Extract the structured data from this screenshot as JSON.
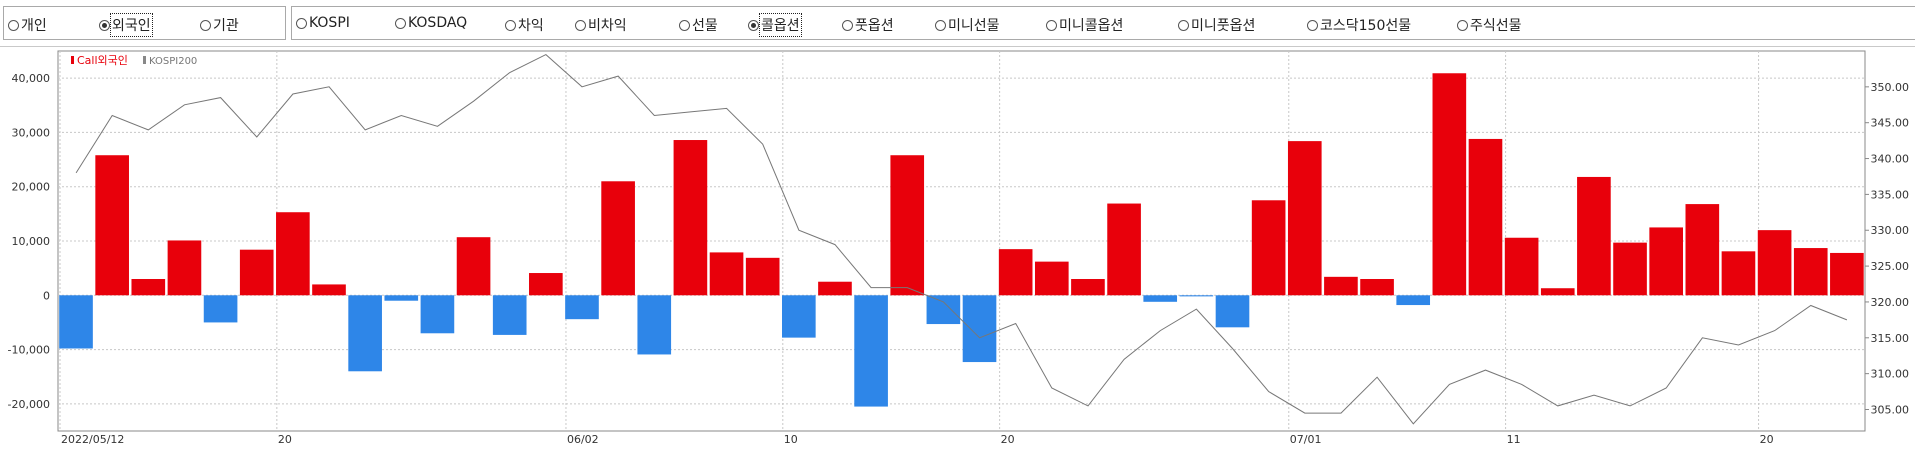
{
  "investor_group": {
    "options": [
      {
        "label": "개인",
        "selected": false
      },
      {
        "label": "외국인",
        "selected": true
      },
      {
        "label": "기관",
        "selected": false
      }
    ]
  },
  "market_group": {
    "options": [
      {
        "label": "KOSPI",
        "selected": false
      },
      {
        "label": "KOSDAQ",
        "selected": false
      },
      {
        "label": "차익",
        "selected": false
      },
      {
        "label": "비차익",
        "selected": false
      },
      {
        "label": "선물",
        "selected": false
      },
      {
        "label": "콜옵션",
        "selected": true
      },
      {
        "label": "풋옵션",
        "selected": false
      },
      {
        "label": "미니선물",
        "selected": false
      },
      {
        "label": "미니콜옵션",
        "selected": false
      },
      {
        "label": "미니풋옵션",
        "selected": false
      },
      {
        "label": "코스닥150선물",
        "selected": false
      },
      {
        "label": "주식선물",
        "selected": false
      }
    ]
  },
  "colors": {
    "positive": "#e8000b",
    "negative": "#2e86e8",
    "line": "#777777",
    "grid": "#c8c8c8"
  },
  "chart_data": {
    "type": "bar",
    "legend": [
      {
        "name": "Call외국인",
        "color": "#e8000b"
      },
      {
        "name": "KOSPI200",
        "color": "#888888"
      }
    ],
    "left_axis": {
      "min": -25000,
      "max": 45000,
      "ticks": [
        -20000,
        -10000,
        0,
        10000,
        20000,
        30000,
        40000
      ],
      "tick_labels": [
        "-20,000",
        "-10,000",
        "0",
        "10,000",
        "20,000",
        "30,000",
        "40,000"
      ]
    },
    "right_axis": {
      "min": 302,
      "max": 355,
      "ticks": [
        305,
        310,
        315,
        320,
        325,
        330,
        335,
        340,
        345,
        350
      ],
      "tick_labels": [
        "305.00",
        "310.00",
        "315.00",
        "320.00",
        "325.00",
        "330.00",
        "335.00",
        "340.00",
        "345.00",
        "350.00"
      ]
    },
    "x_labels": [
      {
        "index": 0,
        "label": "2022/05/12"
      },
      {
        "index": 6,
        "label": "20"
      },
      {
        "index": 14,
        "label": "06/02"
      },
      {
        "index": 20,
        "label": "10"
      },
      {
        "index": 26,
        "label": "20"
      },
      {
        "index": 34,
        "label": "07/01"
      },
      {
        "index": 40,
        "label": "11"
      },
      {
        "index": 47,
        "label": "20"
      }
    ],
    "series": [
      {
        "name": "Call외국인",
        "axis": "left",
        "values": [
          -9800,
          25800,
          3000,
          10100,
          -5000,
          8400,
          15300,
          2000,
          -14000,
          -1000,
          -7000,
          10700,
          -7300,
          4100,
          -4400,
          21000,
          -10900,
          28600,
          7900,
          6900,
          -7800,
          2500,
          -20500,
          25800,
          -5300,
          -12300,
          8500,
          6200,
          3000,
          16900,
          -1200,
          -200,
          -5900,
          17500,
          28400,
          3400,
          3000,
          -1800,
          40900,
          28800,
          10600,
          1300,
          21800,
          9700,
          12500,
          16800,
          8100,
          12000,
          8700,
          7800
        ]
      },
      {
        "name": "KOSPI200",
        "axis": "right",
        "values": [
          338,
          346,
          344,
          347.5,
          348.5,
          343,
          349,
          350,
          344,
          346,
          344.5,
          348,
          352,
          354.5,
          350,
          351.5,
          346,
          346.5,
          347,
          342,
          330,
          328,
          322,
          322,
          320,
          315,
          317,
          308,
          305.5,
          312,
          316,
          319,
          313.5,
          307.5,
          304.5,
          304.5,
          309.5,
          303,
          308.5,
          310.5,
          308.5,
          305.5,
          307,
          305.5,
          308,
          315,
          314,
          316,
          319.5,
          317.5
        ]
      }
    ]
  }
}
